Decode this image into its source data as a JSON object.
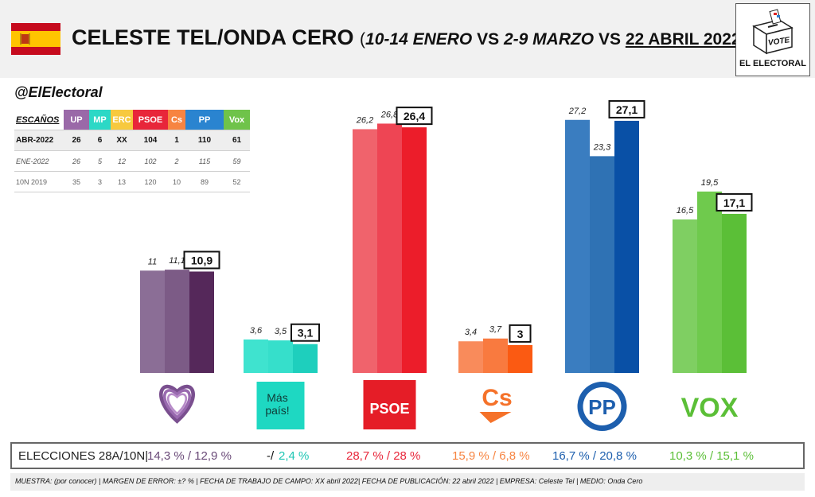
{
  "header": {
    "title_main": "CELESTE TEL/ONDA CERO",
    "title_sub_open": "(",
    "title_sub_mid": "10-14 ENERO",
    "title_vs1": " VS ",
    "title_mid2": "2-9 MARZO",
    "title_vs2": " VS ",
    "title_date": "22 ABRIL 2022",
    "title_close": ")",
    "logo_caption": "EL ELECTORAL",
    "logo_ballot_text": "VOTE"
  },
  "handle": "@ElElectoral",
  "seats_table": {
    "corner_label": "ESCAÑOS",
    "parties": [
      "UP",
      "MP",
      "ERC",
      "PSOE",
      "Cs",
      "PP",
      "Vox"
    ],
    "party_colors": [
      "#9a69a8",
      "#2cd8c6",
      "#f7c93e",
      "#e8263a",
      "#f78441",
      "#2a84d0",
      "#6fc34a"
    ],
    "rows": [
      {
        "label": "ABR-2022",
        "values": [
          "26",
          "6",
          "XX",
          "104",
          "1",
          "110",
          "61"
        ]
      },
      {
        "label": "ENE-2022",
        "values": [
          "26",
          "5",
          "12",
          "102",
          "2",
          "115",
          "59"
        ]
      },
      {
        "label": "10N 2019",
        "values": [
          "35",
          "3",
          "13",
          "120",
          "10",
          "89",
          "52"
        ]
      }
    ]
  },
  "chart_data": {
    "type": "bar",
    "categories": [
      "UP",
      "MP",
      "PSOE",
      "Cs",
      "PP",
      "Vox"
    ],
    "series": [
      {
        "values": [
          11,
          3.6,
          26.2,
          3.4,
          27.2,
          16.5
        ]
      },
      {
        "values": [
          11.1,
          3.5,
          26.8,
          3.7,
          23.3,
          19.5
        ]
      },
      {
        "values": [
          10.9,
          3.1,
          26.4,
          3,
          27.1,
          17.1
        ]
      }
    ],
    "labels": [
      [
        "11",
        "3,6",
        "26,2",
        "3,4",
        "27,2",
        "16,5"
      ],
      [
        "11,1",
        "3,5",
        "26,8",
        "3,7",
        "23,3",
        "19,5"
      ],
      [
        "10,9",
        "3,1",
        "26,4",
        "3",
        "27,1",
        "17,1"
      ]
    ],
    "colors": [
      [
        "#8b6e96",
        "#3fe3cf",
        "#f0636c",
        "#f98b5b",
        "#3a7dc0",
        "#7fcf62"
      ],
      [
        "#7c5b86",
        "#36dfcb",
        "#ee4554",
        "#f97a3f",
        "#2f72b4",
        "#6fca4d"
      ],
      [
        "#55285a",
        "#1ecfbd",
        "#ec1d2a",
        "#fb5a12",
        "#0950a6",
        "#5bbf37"
      ]
    ],
    "ylim": [
      0,
      30
    ],
    "logos": [
      {
        "name": "up-logo",
        "text": ""
      },
      {
        "name": "mas-pais-logo",
        "text": "Más país!"
      },
      {
        "name": "psoe-logo",
        "text": "PSOE"
      },
      {
        "name": "cs-logo",
        "text": "Cs"
      },
      {
        "name": "pp-logo",
        "text": "PP"
      },
      {
        "name": "vox-logo",
        "text": "VOX"
      }
    ]
  },
  "results": {
    "label": "ELECCIONES 28A/10N|",
    "items": [
      {
        "party": "UP",
        "text": "14,3 % / 12,9 %",
        "color": "#6a4a78"
      },
      {
        "party": "MP",
        "prefix": "-/",
        "text": "2,4 %",
        "color": "#1ec6b4"
      },
      {
        "party": "PSOE",
        "text": "28,7  % / 28 %",
        "color": "#e8263a"
      },
      {
        "party": "Cs",
        "text": "15,9 % / 6,8 %",
        "color": "#f78441"
      },
      {
        "party": "PP",
        "text": "16,7 % / 20,8 %",
        "color": "#1d5fae"
      },
      {
        "party": "Vox",
        "text": "10,3 % / 15,1 %",
        "color": "#5bbf37"
      }
    ]
  },
  "footer": "MUESTRA: (por conocer) | MARGEN DE ERROR: ±? % | FECHA DE TRABAJO DE CAMPO: XX abril 2022| FECHA DE PUBLICACIÓN: 22 abril 2022 | EMPRESA: Celeste Tel | MEDIO: Onda Cero"
}
